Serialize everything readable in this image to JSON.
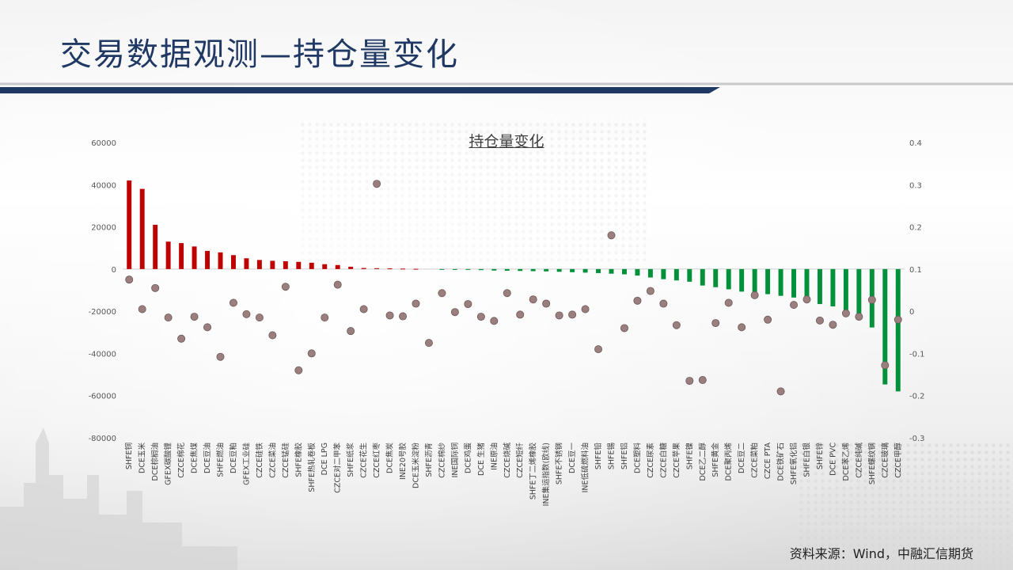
{
  "slide": {
    "title": "交易数据观测—持仓量变化",
    "source": "资料来源：Wind，中融汇信期货"
  },
  "chart_data": {
    "type": "bar",
    "title": "持仓量变化",
    "categories": [
      "SHFE铜",
      "DCE玉米",
      "DCE棕榈油",
      "GFEX碳酸锂",
      "CZCE棉花",
      "DCE焦煤",
      "DCE豆油",
      "SHFE燃油",
      "DCE豆粕",
      "GFEX工业硅",
      "CZCE硅铁",
      "CZCE菜油",
      "CZCE锰硅",
      "SHFE橡胶",
      "SHFE热轧卷板",
      "DCE LPG",
      "CZCE对二甲苯",
      "SHFE纸浆",
      "CZCE花生",
      "CZCE红枣",
      "DCE焦炭",
      "INE20号胶",
      "DCE玉米淀粉",
      "SHFE沥青",
      "CZCE棉纱",
      "INE国际铜",
      "DCE鸡蛋",
      "DCE 生猪",
      "INE原油",
      "CZCE烧碱",
      "CZCE短纤",
      "SHFE丁二烯橡胶",
      "INE集运指数(欧线)",
      "SHFE不锈钢",
      "DCE豆一",
      "INE低硫燃料油",
      "SHFE铅",
      "SHFE锡",
      "SHFE铝",
      "DCE塑料",
      "CZCE尿素",
      "CZCE白糖",
      "CZCE苹果",
      "SHFE镍",
      "DCE乙二醇",
      "SHFE黄金",
      "DCE聚丙烯",
      "DCE豆二",
      "CZCE菜粕",
      "CZCE PTA",
      "DCE铁矿石",
      "SHFE氧化铝",
      "SHFE白银",
      "SHFE锌",
      "DCE PVC",
      "DCE苯乙烯",
      "CZCE纯碱",
      "SHFE螺纹钢",
      "CZCE玻璃",
      "CZCE甲醇"
    ],
    "series": [
      {
        "axis": "left",
        "mark": "bar",
        "values": [
          42000,
          38000,
          21000,
          13000,
          12300,
          10700,
          8600,
          7900,
          6600,
          5100,
          4300,
          3900,
          3700,
          3400,
          3000,
          2300,
          1900,
          1100,
          500,
          400,
          300,
          200,
          100,
          0,
          -100,
          -200,
          -300,
          -500,
          -700,
          -800,
          -900,
          -1000,
          -1100,
          -1300,
          -1500,
          -1700,
          -1900,
          -2200,
          -2500,
          -3100,
          -4000,
          -4800,
          -5400,
          -6000,
          -7800,
          -8600,
          -9600,
          -10700,
          -11300,
          -11900,
          -12700,
          -13500,
          -14400,
          -16600,
          -17700,
          -19600,
          -21700,
          -27700,
          -54700,
          -58000
        ]
      },
      {
        "axis": "right",
        "mark": "scatter",
        "values": [
          0.075,
          0.005,
          0.055,
          -0.015,
          -0.065,
          -0.013,
          -0.038,
          -0.108,
          0.02,
          -0.007,
          -0.015,
          -0.057,
          0.058,
          -0.14,
          -0.1,
          -0.015,
          0.063,
          -0.047,
          0.005,
          0.302,
          -0.01,
          -0.012,
          0.018,
          -0.075,
          0.043,
          -0.002,
          0.017,
          -0.013,
          -0.023,
          0.043,
          -0.008,
          0.028,
          0.018,
          -0.01,
          -0.008,
          0.005,
          -0.09,
          0.18,
          -0.04,
          0.025,
          0.048,
          0.018,
          -0.033,
          -0.165,
          -0.163,
          -0.028,
          0.02,
          -0.038,
          0.038,
          -0.02,
          -0.19,
          0.015,
          0.028,
          -0.022,
          -0.032,
          -0.005,
          -0.013,
          0.027,
          -0.128,
          -0.02
        ]
      }
    ],
    "y_left": {
      "range": [
        -80000,
        60000
      ],
      "ticks": [
        "60000",
        "40000",
        "20000",
        "0",
        "-20000",
        "-40000",
        "-60000",
        "-80000"
      ]
    },
    "y_right": {
      "range": [
        -0.3,
        0.4
      ],
      "ticks": [
        "0.4",
        "0.3",
        "0.2",
        "0.1",
        "0",
        "-0.1",
        "-0.2",
        "-0.3"
      ]
    },
    "grid": false,
    "colors": {
      "positive": "#c00000",
      "negative": "#00913a",
      "marker": "#9b7e7e"
    }
  }
}
